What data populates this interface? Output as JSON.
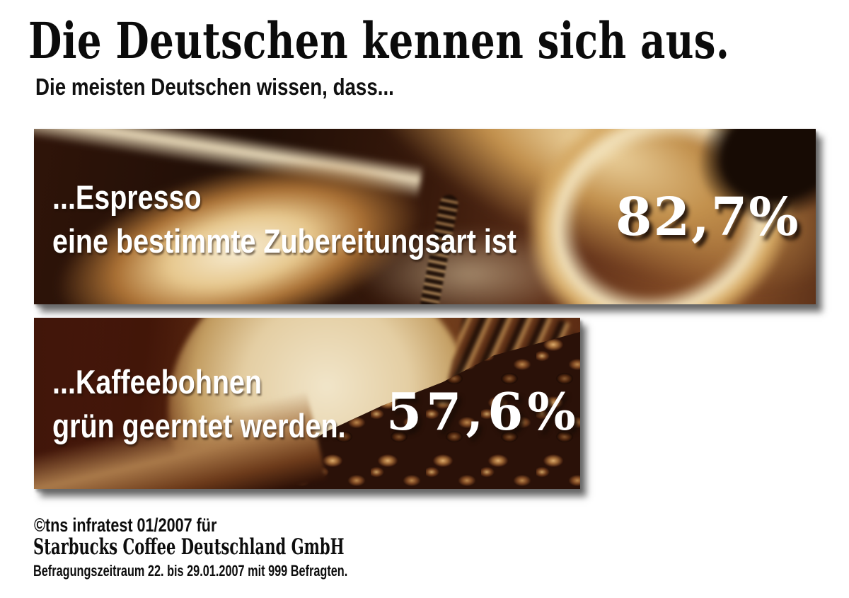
{
  "header": {
    "title": "Die Deutschen kennen sich aus.",
    "subtitle": "Die meisten Deutschen wissen, dass..."
  },
  "banners": [
    {
      "id": "espresso",
      "caption_line1": "...Espresso",
      "caption_line2": "eine bestimmte Zubereitungsart ist",
      "percentage": "82,7%",
      "value": 82.7,
      "image_description": "sepia close-up of coffee being poured over spoons into a glass cup"
    },
    {
      "id": "kaffeebohnen",
      "caption_line1": "...Kaffeebohnen",
      "caption_line2": "grün geerntet werden.",
      "percentage": "57,6%",
      "value": 57.6,
      "image_description": "sepia close-up of roasted coffee beans pouring into a pile beside a glass"
    }
  ],
  "footer": {
    "line1": "©tns infratest 01/2007 für",
    "line2": "Starbucks Coffee Deutschland GmbH",
    "line3": "Befragungszeitraum 22. bis 29.01.2007 mit 999 Befragten."
  },
  "colors": {
    "background": "#ffffff",
    "text_black": "#0b0b0b",
    "banner_text_white": "#ffffff",
    "sepia_dark": "#2f1409",
    "sepia_mid": "#8a5128",
    "sepia_light": "#f2e2bc",
    "shadow_gray": "#5f5f5f"
  }
}
